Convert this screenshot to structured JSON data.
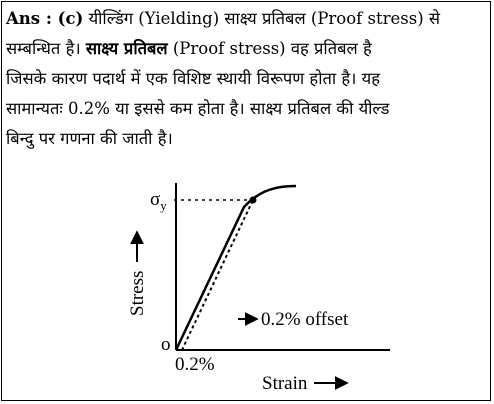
{
  "answer": {
    "prefix": "Ans : (c)",
    "line1_rest": " यील्डिंग (Yielding) साक्ष्य प्रतिबल (Proof stress) से",
    "line2_a": "सम्बन्धित है। ",
    "line2_bold": "साक्ष्य प्रतिबल",
    "line2_b": " (Proof stress) वह प्रतिबल है",
    "line3": "जिसके कारण पदार्थ में एक विशिष्ट स्थायी विरूपण होता है। यह",
    "line4": "सामान्यतः 0.2% या इससे कम होता है। साक्ष्य प्रतिबल की यील्ड",
    "line5": "बिन्दु पर गणना की जाती है।"
  },
  "diagram": {
    "sigma_label": "σ",
    "sigma_subscript": "y",
    "y_axis_label": "Stress",
    "x_axis_label": "Strain",
    "origin_label": "o",
    "offset_tick_label": "0.2%",
    "offset_note": "0.2% offset"
  }
}
